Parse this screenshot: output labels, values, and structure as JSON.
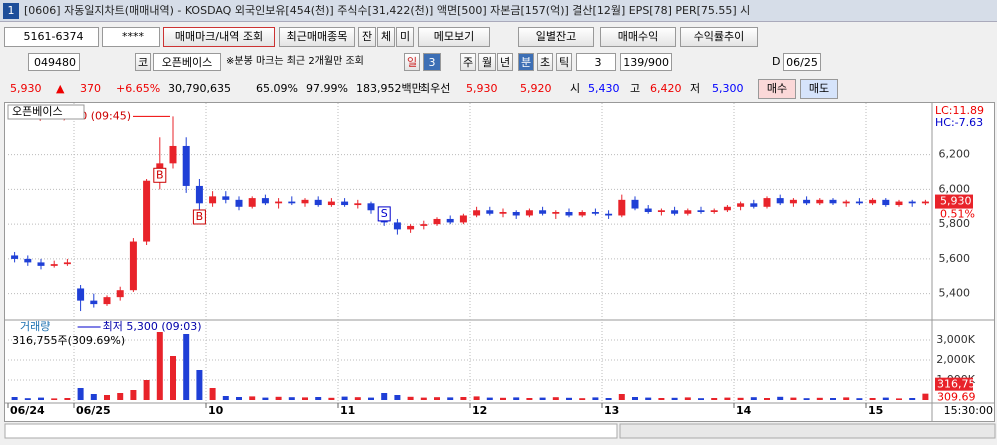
{
  "title_bar": {
    "badge": "1",
    "title": "[0606] 자동일지차트(매매내역) - KOSDAQ 외국인보유[454(천)] 주식수[31,422(천)] 액면[500] 자본금[157(억)] 결산[12월] EPS[78] PER[75.55] 시"
  },
  "toolbar": {
    "account": "5161-6374",
    "password": "****",
    "buttons": [
      "매매마크/내역 조회",
      "최근매매종목",
      "잔",
      "체",
      "미",
      "메모보기",
      "일별잔고",
      "매매수익",
      "수익률추이"
    ]
  },
  "controls": {
    "code": "049480",
    "market": "코",
    "name": "오픈베이스",
    "note": "※분봉 마크는 최근 2개월만 조회",
    "period_buttons": [
      "일",
      "3",
      "주",
      "월",
      "년",
      "분",
      "초",
      "틱"
    ],
    "interval": "3",
    "count": "139/900",
    "check_label": "D",
    "date": "06/25"
  },
  "quote": [
    "5,930",
    "▲",
    "370",
    "+6.65%",
    "30,790,635",
    "65.09%",
    "97.99%",
    "183,952백만",
    "최우선",
    "5,930",
    "5,920",
    "시",
    "5,430",
    "고",
    "6,420",
    "저",
    "5,300"
  ],
  "trade_buttons": [
    "매수",
    "매도"
  ],
  "chart_data": {
    "type": "candlestick",
    "categories": [
      "06/24",
      null,
      null,
      null,
      null,
      "06/25",
      null,
      null,
      null,
      null,
      null,
      null,
      null,
      null,
      null,
      "10",
      null,
      null,
      null,
      null,
      null,
      null,
      null,
      null,
      null,
      "11",
      null,
      null,
      null,
      null,
      null,
      null,
      null,
      null,
      null,
      "12",
      null,
      null,
      null,
      null,
      null,
      null,
      null,
      null,
      null,
      "13",
      null,
      null,
      null,
      null,
      null,
      null,
      null,
      null,
      null,
      "14",
      null,
      null,
      null,
      null,
      null,
      null,
      null,
      null,
      null,
      "15",
      null,
      null,
      null,
      null
    ],
    "open": [
      5620,
      5600,
      5580,
      5560,
      5570,
      5430,
      5360,
      5340,
      5380,
      5420,
      5700,
      6050,
      6150,
      6250,
      6020,
      5920,
      5960,
      5940,
      5900,
      5950,
      5920,
      5930,
      5920,
      5940,
      5910,
      5930,
      5910,
      5920,
      5880,
      5810,
      5770,
      5790,
      5800,
      5830,
      5810,
      5850,
      5880,
      5860,
      5870,
      5850,
      5880,
      5860,
      5870,
      5850,
      5870,
      5860,
      5850,
      5940,
      5890,
      5870,
      5880,
      5860,
      5880,
      5870,
      5880,
      5900,
      5920,
      5900,
      5950,
      5920,
      5940,
      5920,
      5940,
      5920,
      5930,
      5920,
      5940,
      5910,
      5930,
      5920
    ],
    "high": [
      5640,
      5620,
      5600,
      5590,
      5600,
      5450,
      5400,
      5390,
      5440,
      5720,
      6060,
      6300,
      6420,
      6300,
      6060,
      5990,
      5990,
      5960,
      5960,
      5970,
      5950,
      5960,
      5950,
      5960,
      5950,
      5950,
      5940,
      5930,
      5900,
      5830,
      5800,
      5820,
      5840,
      5850,
      5860,
      5900,
      5900,
      5890,
      5880,
      5890,
      5900,
      5880,
      5890,
      5880,
      5890,
      5880,
      5970,
      5960,
      5910,
      5890,
      5900,
      5890,
      5900,
      5890,
      5910,
      5930,
      5940,
      5960,
      5970,
      5950,
      5960,
      5950,
      5950,
      5940,
      5950,
      5950,
      5950,
      5940,
      5940,
      5940
    ],
    "low": [
      5580,
      5560,
      5540,
      5550,
      5560,
      5300,
      5320,
      5330,
      5360,
      5410,
      5680,
      6000,
      6120,
      5980,
      5880,
      5900,
      5920,
      5880,
      5890,
      5910,
      5890,
      5910,
      5900,
      5900,
      5900,
      5900,
      5890,
      5860,
      5790,
      5740,
      5750,
      5770,
      5790,
      5800,
      5800,
      5840,
      5850,
      5840,
      5830,
      5840,
      5850,
      5830,
      5840,
      5840,
      5850,
      5830,
      5840,
      5880,
      5860,
      5850,
      5850,
      5850,
      5860,
      5860,
      5870,
      5880,
      5890,
      5890,
      5910,
      5900,
      5910,
      5910,
      5910,
      5900,
      5910,
      5910,
      5900,
      5900,
      5900,
      5910
    ],
    "close": [
      5600,
      5580,
      5560,
      5570,
      5580,
      5360,
      5340,
      5380,
      5420,
      5700,
      6050,
      6150,
      6250,
      6020,
      5920,
      5960,
      5940,
      5900,
      5950,
      5920,
      5930,
      5920,
      5940,
      5910,
      5930,
      5910,
      5920,
      5880,
      5810,
      5770,
      5790,
      5800,
      5830,
      5810,
      5850,
      5880,
      5860,
      5870,
      5850,
      5880,
      5860,
      5870,
      5850,
      5870,
      5860,
      5850,
      5940,
      5890,
      5870,
      5880,
      5860,
      5880,
      5870,
      5880,
      5900,
      5920,
      5900,
      5950,
      5920,
      5940,
      5920,
      5940,
      5920,
      5930,
      5920,
      5940,
      5910,
      5930,
      5920,
      5930
    ],
    "volume": [
      150000,
      90000,
      120000,
      80000,
      100000,
      600000,
      300000,
      250000,
      350000,
      500000,
      1000000,
      3400000,
      2200000,
      3300000,
      1500000,
      600000,
      200000,
      150000,
      180000,
      120000,
      160000,
      140000,
      130000,
      150000,
      110000,
      170000,
      140000,
      120000,
      350000,
      250000,
      160000,
      120000,
      140000,
      130000,
      150000,
      180000,
      120000,
      110000,
      130000,
      100000,
      120000,
      140000,
      110000,
      90000,
      130000,
      100000,
      300000,
      150000,
      120000,
      100000,
      110000,
      130000,
      90000,
      100000,
      120000,
      110000,
      140000,
      100000,
      160000,
      120000,
      90000,
      110000,
      100000,
      130000,
      90000,
      100000,
      120000,
      80000,
      100000,
      316755
    ],
    "up_color": "#e8232a",
    "down_color": "#1f3fd6",
    "ylim": [
      5260,
      6480
    ],
    "yticks": [
      {
        "value": 5400,
        "label": "5,400"
      },
      {
        "value": 5600,
        "label": "5,600"
      },
      {
        "value": 5800,
        "label": "5,800"
      },
      {
        "value": 6000,
        "label": "6,000"
      },
      {
        "value": 6200,
        "label": "6,200"
      }
    ],
    "volume_ylim": [
      0,
      3900000
    ],
    "volume_ticks": [
      {
        "value": 1000000,
        "label": "1,000K"
      },
      {
        "value": 2000000,
        "label": "2,000K"
      },
      {
        "value": 3000000,
        "label": "3,000K"
      }
    ],
    "grid": true,
    "legend": "오픈베이스",
    "volume_title": "거래량",
    "volume_label": "316,755주(309.69%)",
    "high_label": "최고 6,420 (09:45)",
    "low_label": "최저 5,300 (09:03)",
    "time_label": "15:30:00",
    "axis_tags": {
      "lc": "LC:11.89",
      "hc": "HC:-7.63",
      "last_price": "5,930",
      "change": "0.51%",
      "last_volume": "316,755",
      "volume_ratio": "309.69"
    },
    "trades": [
      {
        "at": 11,
        "label": "B"
      },
      {
        "at": 14,
        "label": "B"
      },
      {
        "at": 28,
        "label": "S"
      }
    ]
  }
}
